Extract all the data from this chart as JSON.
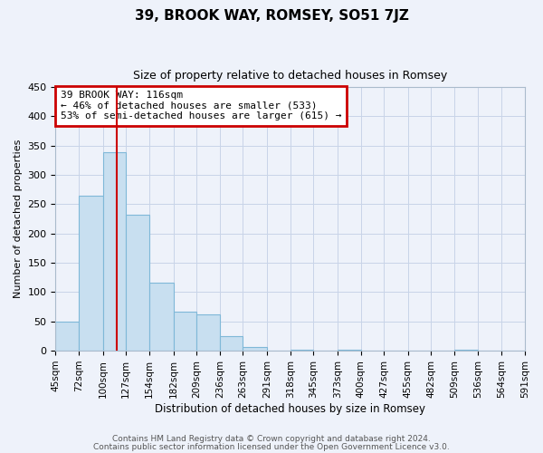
{
  "title": "39, BROOK WAY, ROMSEY, SO51 7JZ",
  "subtitle": "Size of property relative to detached houses in Romsey",
  "xlabel": "Distribution of detached houses by size in Romsey",
  "ylabel": "Number of detached properties",
  "bar_edges": [
    45,
    72,
    100,
    127,
    154,
    182,
    209,
    236,
    263,
    291,
    318,
    345,
    373,
    400,
    427,
    455,
    482,
    509,
    536,
    564,
    591
  ],
  "bar_heights": [
    50,
    265,
    338,
    232,
    116,
    66,
    62,
    25,
    7,
    0,
    2,
    0,
    2,
    0,
    0,
    0,
    0,
    2,
    0,
    0
  ],
  "tick_labels": [
    "45sqm",
    "72sqm",
    "100sqm",
    "127sqm",
    "154sqm",
    "182sqm",
    "209sqm",
    "236sqm",
    "263sqm",
    "291sqm",
    "318sqm",
    "345sqm",
    "373sqm",
    "400sqm",
    "427sqm",
    "455sqm",
    "482sqm",
    "509sqm",
    "536sqm",
    "564sqm",
    "591sqm"
  ],
  "bar_color": "#C8DFF0",
  "bar_edgecolor": "#7FB8D8",
  "vline_x": 116,
  "vline_color": "#CC0000",
  "ylim": [
    0,
    450
  ],
  "yticks": [
    0,
    50,
    100,
    150,
    200,
    250,
    300,
    350,
    400,
    450
  ],
  "annotation_title": "39 BROOK WAY: 116sqm",
  "annotation_line1": "← 46% of detached houses are smaller (533)",
  "annotation_line2": "53% of semi-detached houses are larger (615) →",
  "annotation_box_edgecolor": "#CC0000",
  "grid_color": "#C8D4E8",
  "background_color": "#EEF2FA",
  "footer1": "Contains HM Land Registry data © Crown copyright and database right 2024.",
  "footer2": "Contains public sector information licensed under the Open Government Licence v3.0.",
  "title_fontsize": 11,
  "subtitle_fontsize": 9,
  "ylabel_fontsize": 8,
  "xlabel_fontsize": 8.5
}
